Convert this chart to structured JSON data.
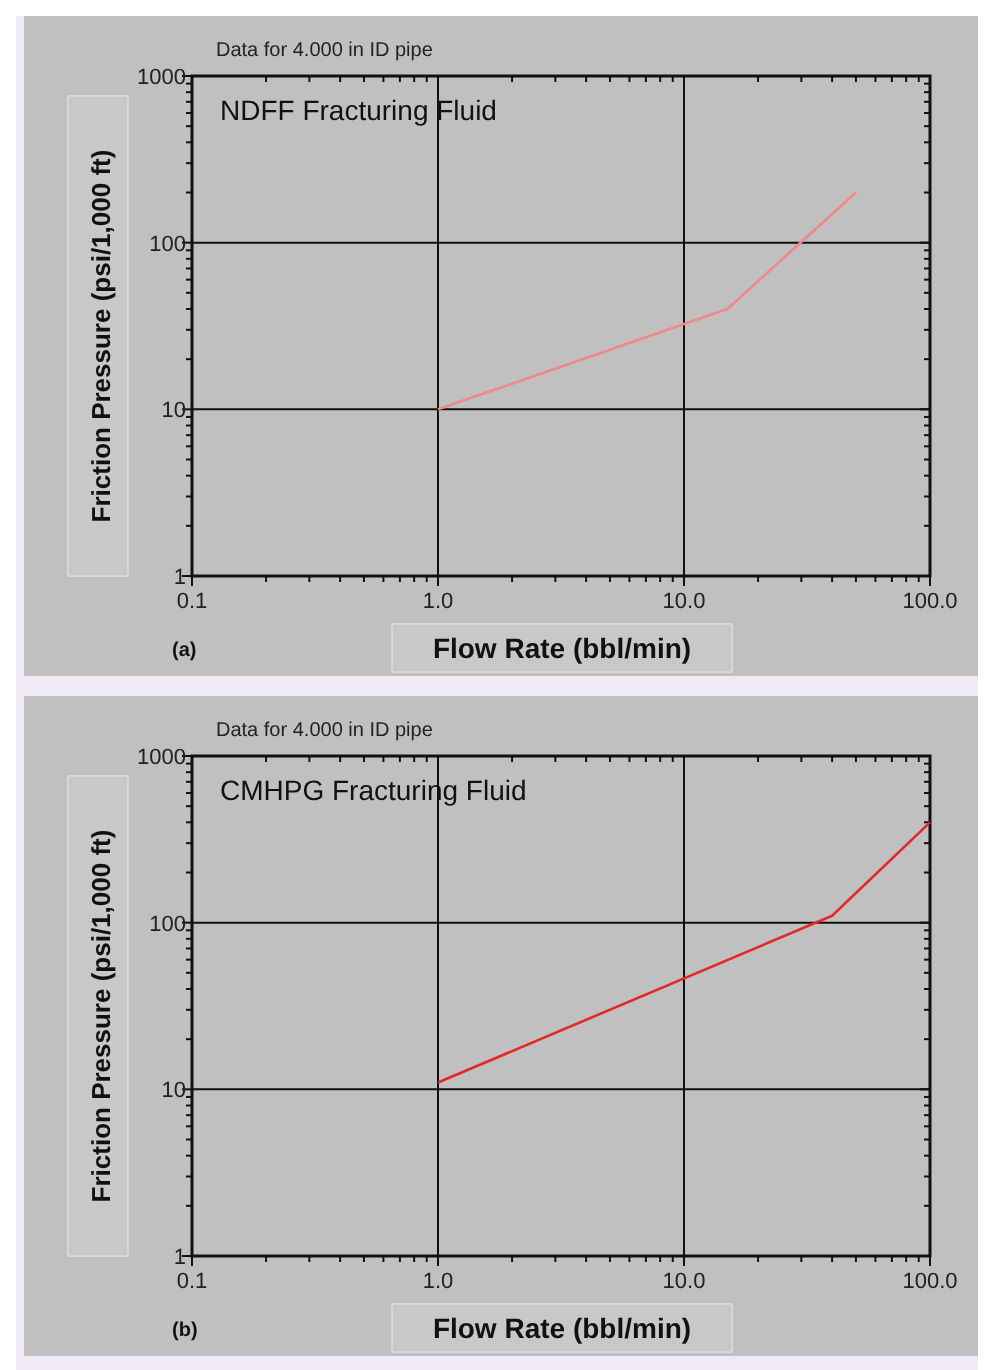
{
  "chart_data": [
    {
      "type": "line",
      "title": "NDFF Fracturing Fluid",
      "subtitle": "Data for 4.000 in ID pipe",
      "xlabel": "Flow Rate (bbl/min)",
      "ylabel": "Friction Pressure (psi/1,000 ft)",
      "annotations": [
        "(a)"
      ],
      "log": "xy",
      "grid": true,
      "xlim": [
        0.1,
        100
      ],
      "ylim": [
        1,
        1000
      ],
      "xticks": [
        {
          "value": 0.1,
          "label": "0.1"
        },
        {
          "value": 0.2,
          "label": null
        },
        {
          "value": 0.3,
          "label": null
        },
        {
          "value": 0.4,
          "label": null
        },
        {
          "value": 0.5,
          "label": null
        },
        {
          "value": 0.6,
          "label": null
        },
        {
          "value": 0.7,
          "label": null
        },
        {
          "value": 0.8,
          "label": null
        },
        {
          "value": 0.9,
          "label": null
        },
        {
          "value": 1,
          "label": "1.0"
        },
        {
          "value": 2,
          "label": null
        },
        {
          "value": 3,
          "label": null
        },
        {
          "value": 4,
          "label": null
        },
        {
          "value": 5,
          "label": null
        },
        {
          "value": 6,
          "label": null
        },
        {
          "value": 7,
          "label": null
        },
        {
          "value": 8,
          "label": null
        },
        {
          "value": 9,
          "label": null
        },
        {
          "value": 10,
          "label": "10.0"
        },
        {
          "value": 20,
          "label": null
        },
        {
          "value": 30,
          "label": null
        },
        {
          "value": 40,
          "label": null
        },
        {
          "value": 50,
          "label": null
        },
        {
          "value": 60,
          "label": null
        },
        {
          "value": 70,
          "label": null
        },
        {
          "value": 80,
          "label": null
        },
        {
          "value": 90,
          "label": null
        },
        {
          "value": 100,
          "label": "100.0"
        }
      ],
      "yticks": [
        1,
        {
          "value": 2,
          "label": null
        },
        {
          "value": 3,
          "label": null
        },
        {
          "value": 4,
          "label": null
        },
        {
          "value": 5,
          "label": null
        },
        {
          "value": 6,
          "label": null
        },
        {
          "value": 7,
          "label": null
        },
        {
          "value": 8,
          "label": null
        },
        {
          "value": 9,
          "label": null
        },
        10,
        {
          "value": 20,
          "label": null
        },
        {
          "value": 30,
          "label": null
        },
        {
          "value": 40,
          "label": null
        },
        {
          "value": 50,
          "label": null
        },
        {
          "value": 60,
          "label": null
        },
        {
          "value": 70,
          "label": null
        },
        {
          "value": 80,
          "label": null
        },
        {
          "value": 90,
          "label": null
        },
        100,
        {
          "value": 200,
          "label": null
        },
        {
          "value": 300,
          "label": null
        },
        {
          "value": 400,
          "label": null
        },
        {
          "value": 500,
          "label": null
        },
        {
          "value": 600,
          "label": null
        },
        {
          "value": 700,
          "label": null
        },
        {
          "value": 800,
          "label": null
        },
        {
          "value": 900,
          "label": null
        },
        1000
      ],
      "series": [
        {
          "color": "#f08888",
          "x": [
            1,
            15,
            50
          ],
          "values": [
            10,
            40,
            200
          ]
        }
      ]
    },
    {
      "type": "line",
      "title": "CMHPG Fracturing Fluid",
      "subtitle": "Data for 4.000 in ID pipe",
      "xlabel": "Flow Rate (bbl/min)",
      "ylabel": "Friction Pressure (psi/1,000 ft)",
      "annotations": [
        "(b)"
      ],
      "log": "xy",
      "grid": true,
      "xlim": [
        0.1,
        100
      ],
      "ylim": [
        1,
        1000
      ],
      "xticks": [
        {
          "value": 0.1,
          "label": "0.1"
        },
        {
          "value": 0.2,
          "label": null
        },
        {
          "value": 0.3,
          "label": null
        },
        {
          "value": 0.4,
          "label": null
        },
        {
          "value": 0.5,
          "label": null
        },
        {
          "value": 0.6,
          "label": null
        },
        {
          "value": 0.7,
          "label": null
        },
        {
          "value": 0.8,
          "label": null
        },
        {
          "value": 0.9,
          "label": null
        },
        {
          "value": 1,
          "label": "1.0"
        },
        {
          "value": 2,
          "label": null
        },
        {
          "value": 3,
          "label": null
        },
        {
          "value": 4,
          "label": null
        },
        {
          "value": 5,
          "label": null
        },
        {
          "value": 6,
          "label": null
        },
        {
          "value": 7,
          "label": null
        },
        {
          "value": 8,
          "label": null
        },
        {
          "value": 9,
          "label": null
        },
        {
          "value": 10,
          "label": "10.0"
        },
        {
          "value": 20,
          "label": null
        },
        {
          "value": 30,
          "label": null
        },
        {
          "value": 40,
          "label": null
        },
        {
          "value": 50,
          "label": null
        },
        {
          "value": 60,
          "label": null
        },
        {
          "value": 70,
          "label": null
        },
        {
          "value": 80,
          "label": null
        },
        {
          "value": 90,
          "label": null
        },
        {
          "value": 100,
          "label": "100.0"
        }
      ],
      "yticks": [
        1,
        {
          "value": 2,
          "label": null
        },
        {
          "value": 3,
          "label": null
        },
        {
          "value": 4,
          "label": null
        },
        {
          "value": 5,
          "label": null
        },
        {
          "value": 6,
          "label": null
        },
        {
          "value": 7,
          "label": null
        },
        {
          "value": 8,
          "label": null
        },
        {
          "value": 9,
          "label": null
        },
        10,
        {
          "value": 20,
          "label": null
        },
        {
          "value": 30,
          "label": null
        },
        {
          "value": 40,
          "label": null
        },
        {
          "value": 50,
          "label": null
        },
        {
          "value": 60,
          "label": null
        },
        {
          "value": 70,
          "label": null
        },
        {
          "value": 80,
          "label": null
        },
        {
          "value": 90,
          "label": null
        },
        100,
        {
          "value": 200,
          "label": null
        },
        {
          "value": 300,
          "label": null
        },
        {
          "value": 400,
          "label": null
        },
        {
          "value": 500,
          "label": null
        },
        {
          "value": 600,
          "label": null
        },
        {
          "value": 700,
          "label": null
        },
        {
          "value": 800,
          "label": null
        },
        {
          "value": 900,
          "label": null
        },
        1000
      ],
      "series": [
        {
          "color": "#e42828",
          "x": [
            1,
            40,
            100
          ],
          "values": [
            11,
            110,
            400
          ]
        }
      ]
    }
  ]
}
